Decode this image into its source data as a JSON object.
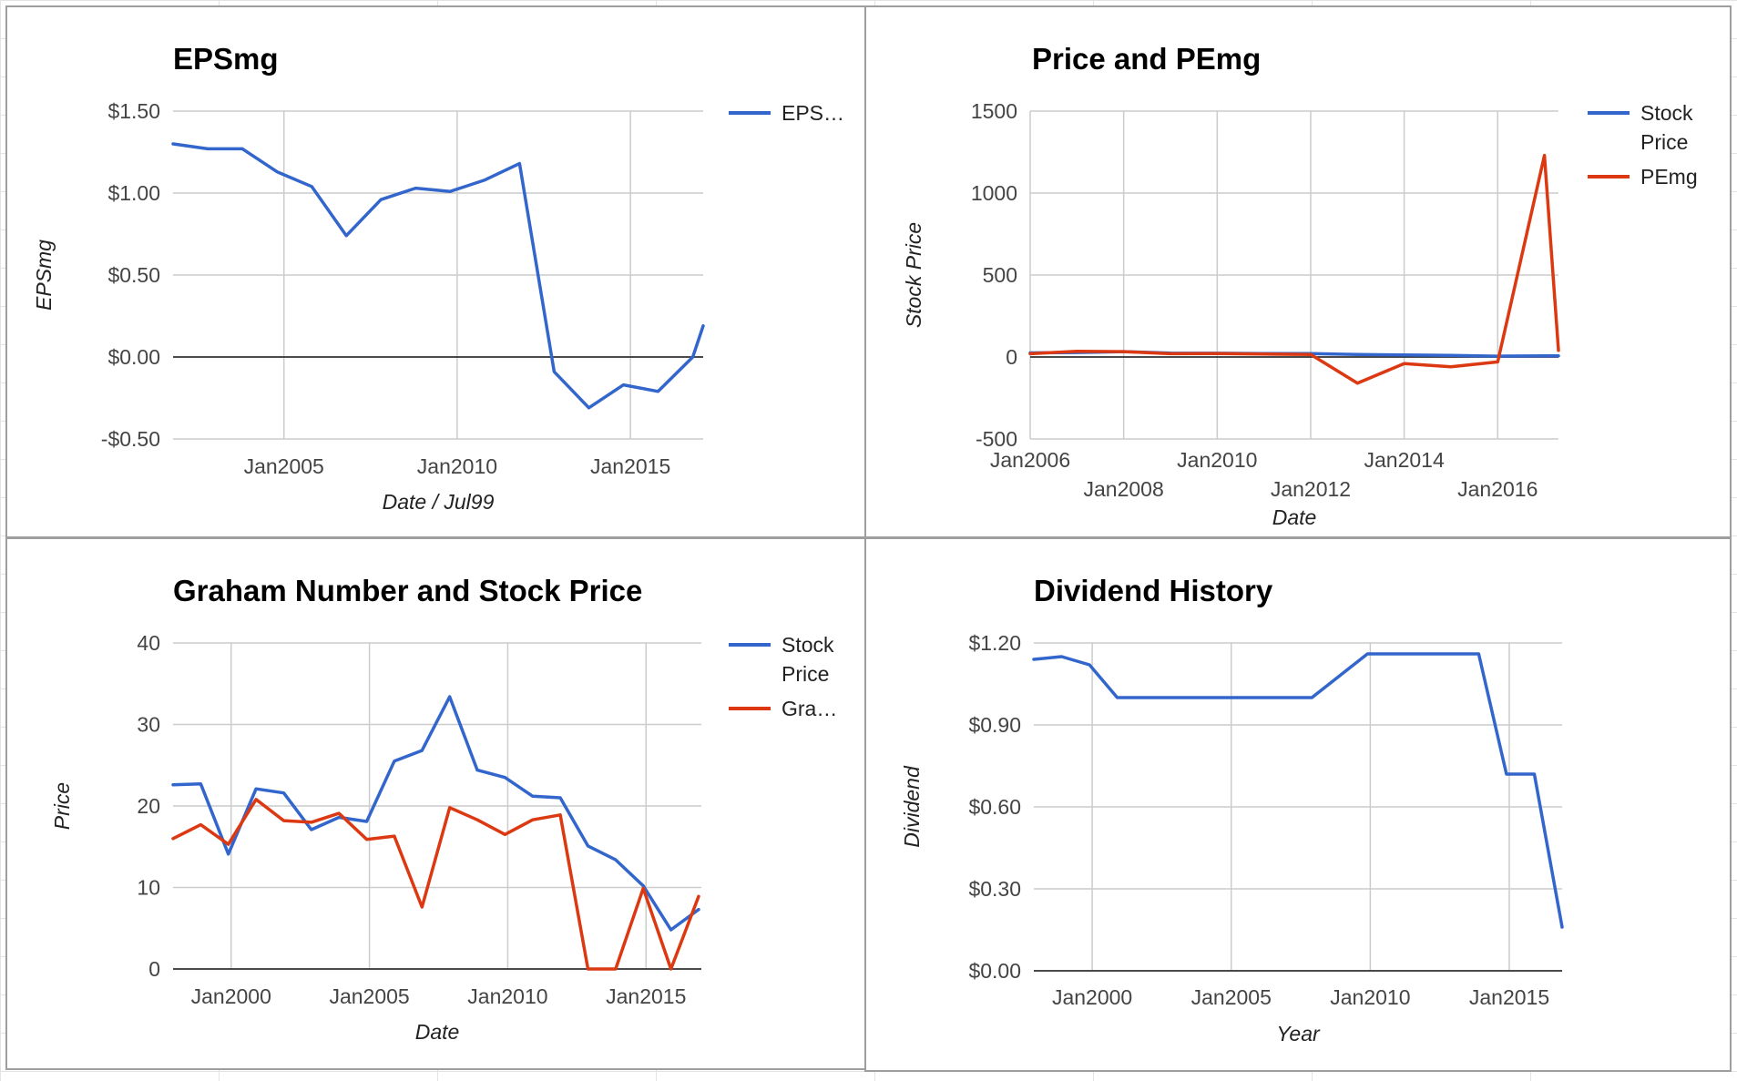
{
  "colors": {
    "blue": "#3366cc",
    "red": "#dc3912"
  },
  "chart_data": [
    {
      "id": "eps",
      "type": "line",
      "title": "EPSmg",
      "xlabel": "Date / Jul99",
      "ylabel": "EPSmg",
      "ylim": [
        -0.5,
        1.5
      ],
      "yticks": [
        1.5,
        1.0,
        0.5,
        0.0,
        -0.5
      ],
      "ytick_labels": [
        "$1.50",
        "$1.00",
        "$0.50",
        "$0.00",
        "-$0.50"
      ],
      "xlim": [
        2001.8,
        2017.1
      ],
      "xticks": [
        {
          "x": 2005,
          "label": "Jan2005",
          "row": 0
        },
        {
          "x": 2010,
          "label": "Jan2010",
          "row": 0
        },
        {
          "x": 2015,
          "label": "Jan2015",
          "row": 0
        }
      ],
      "x_dates": [
        "2002-01",
        "2003-01",
        "2004-01",
        "2005-01",
        "2006-01",
        "2007-01",
        "2008-01",
        "2009-01",
        "2010-01",
        "2011-01",
        "2012-01",
        "2013-01",
        "2014-01",
        "2015-01",
        "2016-01",
        "2017-01"
      ],
      "x_dates_tail": [
        "2017-06"
      ],
      "x": [
        2001.8,
        2002.8,
        2003.8,
        2004.8,
        2005.8,
        2006.8,
        2007.8,
        2008.8,
        2009.8,
        2010.8,
        2011.8,
        2012.8,
        2013.8,
        2014.8,
        2015.8,
        2016.8,
        2017.1
      ],
      "series": [
        {
          "name": "EPS…",
          "color": "#3366cc",
          "values": [
            1.3,
            1.27,
            1.27,
            1.13,
            1.04,
            0.74,
            0.96,
            1.03,
            1.01,
            1.08,
            1.18,
            -0.09,
            -0.31,
            -0.17,
            -0.21,
            0.0,
            0.19
          ]
        }
      ]
    },
    {
      "id": "pe",
      "type": "line",
      "title": "Price and PEmg",
      "xlabel": "Date",
      "ylabel": "Stock Price",
      "ylim": [
        -500,
        1500
      ],
      "yticks": [
        1500,
        1000,
        500,
        0,
        -500
      ],
      "ytick_labels": [
        "1500",
        "1000",
        "500",
        "0",
        "-500"
      ],
      "xlim": [
        2006,
        2017.3
      ],
      "xticks": [
        {
          "x": 2006,
          "label": "Jan2006",
          "row": 0
        },
        {
          "x": 2008,
          "label": "Jan2008",
          "row": 1
        },
        {
          "x": 2010,
          "label": "Jan2010",
          "row": 0
        },
        {
          "x": 2012,
          "label": "Jan2012",
          "row": 1
        },
        {
          "x": 2014,
          "label": "Jan2014",
          "row": 0
        },
        {
          "x": 2016,
          "label": "Jan2016",
          "row": 1
        }
      ],
      "x": [
        2006,
        2007,
        2008,
        2009,
        2010,
        2011,
        2012,
        2013,
        2014,
        2015,
        2016,
        2017,
        2017.3
      ],
      "series": [
        {
          "name": "Stock Price",
          "color": "#3366cc",
          "values": [
            25,
            27,
            33,
            24,
            23,
            21,
            21,
            15,
            13,
            10,
            5,
            7,
            7
          ]
        },
        {
          "name": "PEmg",
          "color": "#dc3912",
          "values": [
            20,
            35,
            33,
            20,
            21,
            18,
            15,
            -160,
            -40,
            -60,
            -30,
            1230,
            40
          ]
        }
      ]
    },
    {
      "id": "graham",
      "type": "line",
      "title": "Graham Number and Stock Price",
      "xlabel": "Date",
      "ylabel": "Price",
      "ylim": [
        0,
        40
      ],
      "yticks": [
        40,
        30,
        20,
        10,
        0
      ],
      "ytick_labels": [
        "40",
        "30",
        "20",
        "10",
        "0"
      ],
      "xlim": [
        1997.9,
        2017.0
      ],
      "xticks": [
        {
          "x": 2000,
          "label": "Jan2000",
          "row": 0
        },
        {
          "x": 2005,
          "label": "Jan2005",
          "row": 0
        },
        {
          "x": 2010,
          "label": "Jan2010",
          "row": 0
        },
        {
          "x": 2015,
          "label": "Jan2015",
          "row": 0
        }
      ],
      "x": [
        1997.9,
        1998.9,
        1999.9,
        2000.9,
        2001.9,
        2002.9,
        2003.9,
        2004.9,
        2005.9,
        2006.9,
        2007.9,
        2008.9,
        2009.9,
        2010.9,
        2011.9,
        2012.9,
        2013.9,
        2014.9,
        2015.9,
        2016.9
      ],
      "series": [
        {
          "name": "Stock Price",
          "color": "#3366cc",
          "values": [
            22.6,
            22.7,
            14.1,
            22.1,
            21.6,
            17.1,
            18.6,
            18.1,
            25.5,
            26.8,
            33.4,
            24.4,
            23.5,
            21.2,
            21.0,
            15.1,
            13.4,
            10.2,
            4.8,
            7.3
          ]
        },
        {
          "name": "Gra…",
          "color": "#dc3912",
          "values": [
            16.0,
            17.7,
            15.3,
            20.8,
            18.2,
            18.0,
            19.1,
            15.9,
            16.3,
            7.6,
            19.8,
            18.3,
            16.5,
            18.3,
            18.9,
            0.0,
            0.0,
            9.9,
            0.0,
            8.9
          ]
        }
      ]
    },
    {
      "id": "dividend",
      "type": "line",
      "title": "Dividend History",
      "xlabel": "Year",
      "ylabel": "Dividend",
      "ylim": [
        0,
        1.2
      ],
      "yticks": [
        1.2,
        0.9,
        0.6,
        0.3,
        0.0
      ],
      "ytick_labels": [
        "$1.20",
        "$0.90",
        "$0.60",
        "$0.30",
        "$0.00"
      ],
      "xlim": [
        1997.9,
        2016.9
      ],
      "xticks": [
        {
          "x": 2000,
          "label": "Jan2000",
          "row": 0
        },
        {
          "x": 2005,
          "label": "Jan2005",
          "row": 0
        },
        {
          "x": 2010,
          "label": "Jan2010",
          "row": 0
        },
        {
          "x": 2015,
          "label": "Jan2015",
          "row": 0
        }
      ],
      "x": [
        1997.9,
        1998.9,
        1999.9,
        2000.9,
        2001.9,
        2002.9,
        2003.9,
        2004.9,
        2005.9,
        2006.9,
        2007.9,
        2008.9,
        2009.9,
        2010.9,
        2011.9,
        2012.9,
        2013.9,
        2014.9,
        2015.9,
        2016.9
      ],
      "series": [
        {
          "name": "",
          "color": "#3366cc",
          "values": [
            1.14,
            1.15,
            1.12,
            1.0,
            1.0,
            1.0,
            1.0,
            1.0,
            1.0,
            1.0,
            1.0,
            1.08,
            1.16,
            1.16,
            1.16,
            1.16,
            1.16,
            0.72,
            0.72,
            0.16
          ]
        }
      ]
    }
  ]
}
